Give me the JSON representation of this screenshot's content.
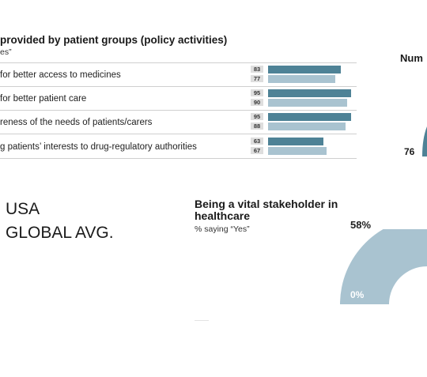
{
  "chart_data": [
    {
      "type": "bar",
      "title": "provided by patient groups (policy activities)",
      "subtitle": "es”",
      "categories": [
        "for better access to medicines",
        "for better patient care",
        "reness of the needs of patients/carers",
        "g patients’ interests to drug-regulatory authorities"
      ],
      "series": [
        {
          "name": "USA",
          "values": [
            83,
            95,
            95,
            63
          ],
          "color": "#4e8296"
        },
        {
          "name": "GLOBAL AVG.",
          "values": [
            77,
            90,
            88,
            67
          ],
          "color": "#a9c3d0"
        }
      ],
      "xlim": [
        0,
        100
      ],
      "orientation": "horizontal"
    },
    {
      "type": "pie",
      "title": "Being a vital stakeholder in healthcare",
      "subtitle": "% saying “Yes”",
      "labels": [
        "58%",
        "0%"
      ],
      "values": [
        58,
        0
      ],
      "color": "#a9c3d0"
    }
  ],
  "right_panel": {
    "title": "Num",
    "value": "76"
  },
  "legend": {
    "usa": "USA",
    "global": "GLOBAL AVG."
  }
}
